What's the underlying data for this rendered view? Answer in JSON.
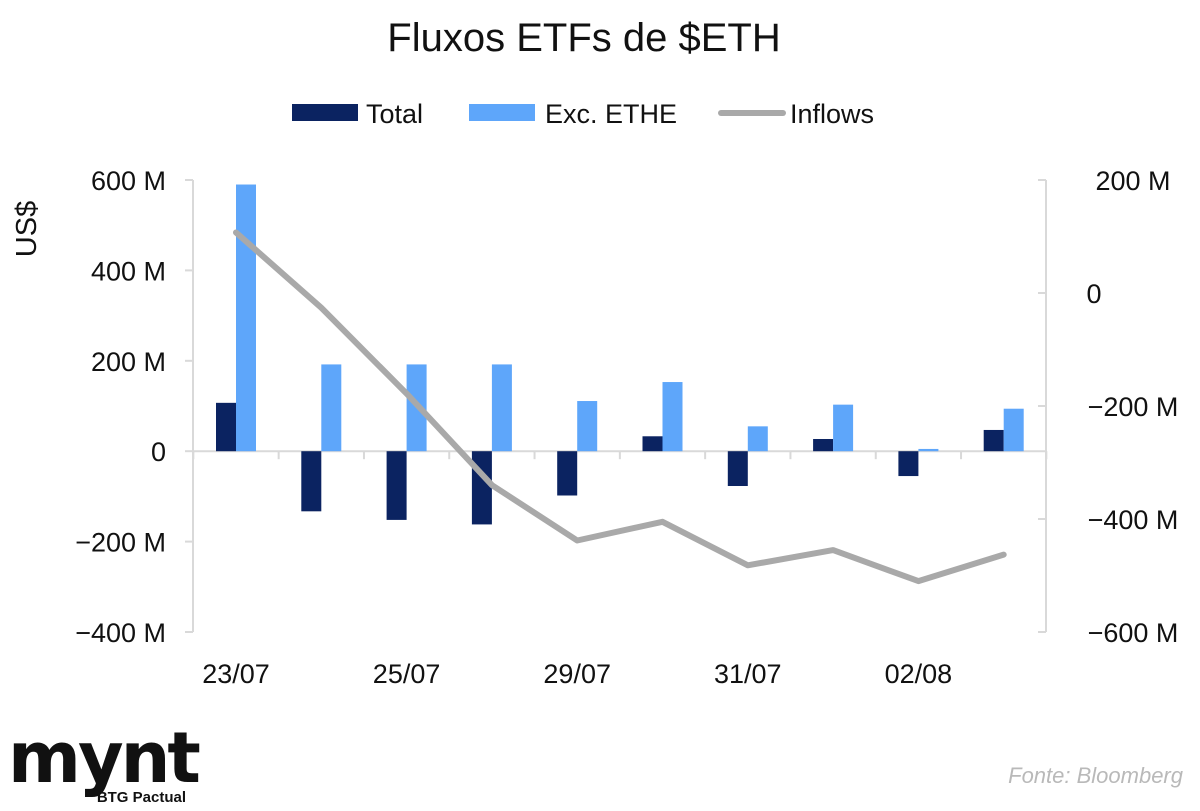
{
  "chart_data": {
    "type": "bar",
    "title": "Fluxos ETFs de $ETH",
    "ylabel": "US$",
    "ylim": [
      -400,
      600
    ],
    "y2lim": [
      -600,
      200
    ],
    "yticks": [
      {
        "value": 600,
        "label": "600 M"
      },
      {
        "value": 400,
        "label": "400 M"
      },
      {
        "value": 200,
        "label": "200 M"
      },
      {
        "value": 0,
        "label": "0"
      },
      {
        "value": -200,
        "label": "−200 M"
      },
      {
        "value": -400,
        "label": "−400 M"
      }
    ],
    "y2ticks": [
      {
        "value": 200,
        "label": "200 M"
      },
      {
        "value": 0,
        "label": "0"
      },
      {
        "value": -200,
        "label": "−200 M"
      },
      {
        "value": -400,
        "label": "−400 M"
      },
      {
        "value": -600,
        "label": "−600 M"
      }
    ],
    "xtick_labels": [
      {
        "index": 0,
        "label": "23/07"
      },
      {
        "index": 2,
        "label": "25/07"
      },
      {
        "index": 4,
        "label": "29/07"
      },
      {
        "index": 6,
        "label": "31/07"
      },
      {
        "index": 8,
        "label": "02/08"
      }
    ],
    "series": [
      {
        "name": "Total",
        "type": "bar",
        "axis": "left",
        "color": "#0b2361",
        "values": [
          107,
          -133,
          -152,
          -162,
          -98,
          33,
          -77,
          27,
          -55,
          47
        ]
      },
      {
        "name": "Exc. ETHE",
        "type": "bar",
        "axis": "left",
        "color": "#5ea6fa",
        "values": [
          590,
          192,
          192,
          192,
          111,
          153,
          55,
          103,
          5,
          94
        ]
      },
      {
        "name": "Inflows",
        "type": "line",
        "axis": "right",
        "color": "#a9a9a9",
        "values": [
          107,
          -26,
          -178,
          -340,
          -438,
          -405,
          -482,
          -455,
          -510,
          -463
        ]
      }
    ],
    "legend_position": "top-center",
    "grid": false
  },
  "source": "Fonte: Bloomberg",
  "logo": {
    "name": "mynt",
    "subtitle": "BTG Pactual"
  }
}
